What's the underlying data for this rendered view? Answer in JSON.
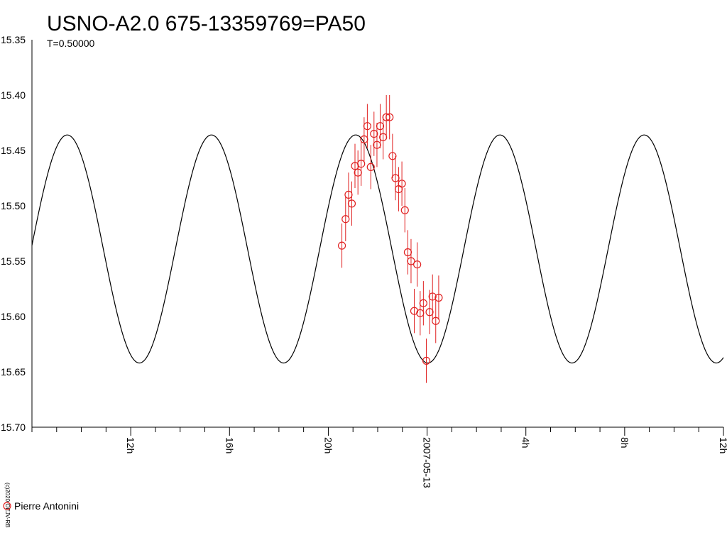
{
  "chart_data": {
    "type": "scatter",
    "title": "USNO-A2.0 675-13359769=PA50",
    "subtitle": "T=0.50000",
    "copyright": "(c)2020 OEJV-RB",
    "y_reversed": true,
    "ylim": [
      15.35,
      15.7
    ],
    "y_ticks": [
      "15.35",
      "15.40",
      "15.45",
      "15.50",
      "15.55",
      "15.60",
      "15.65",
      "15.70"
    ],
    "x_unit": "hours",
    "xlim": [
      8.0,
      36.0
    ],
    "x_ticks": [
      {
        "x": 12,
        "label": "12h"
      },
      {
        "x": 16,
        "label": "16h"
      },
      {
        "x": 20,
        "label": "20h"
      },
      {
        "x": 24,
        "label": "2007-05-13"
      },
      {
        "x": 28,
        "label": "4h"
      },
      {
        "x": 32,
        "label": "8h"
      },
      {
        "x": 36,
        "label": "12h"
      }
    ],
    "minor_tick_step_hours": 1,
    "model": {
      "type": "sinusoid",
      "period_hours": 5.84,
      "max_mag": 15.436,
      "min_mag": 15.642,
      "brightest_at_hours": 9.43
    },
    "colors": {
      "series": "#e02020",
      "model": "#000000",
      "axis": "#000000"
    },
    "series": [
      {
        "name": "Pierre Antonini",
        "marker": "circle-open",
        "points": [
          {
            "x": 20.55,
            "y": 15.536,
            "err": 0.02
          },
          {
            "x": 20.7,
            "y": 15.512,
            "err": 0.02
          },
          {
            "x": 20.82,
            "y": 15.49,
            "err": 0.02
          },
          {
            "x": 20.95,
            "y": 15.498,
            "err": 0.02
          },
          {
            "x": 21.08,
            "y": 15.464,
            "err": 0.02
          },
          {
            "x": 21.2,
            "y": 15.47,
            "err": 0.02
          },
          {
            "x": 21.33,
            "y": 15.462,
            "err": 0.02
          },
          {
            "x": 21.45,
            "y": 15.44,
            "err": 0.02
          },
          {
            "x": 21.58,
            "y": 15.428,
            "err": 0.02
          },
          {
            "x": 21.72,
            "y": 15.465,
            "err": 0.02
          },
          {
            "x": 21.85,
            "y": 15.435,
            "err": 0.02
          },
          {
            "x": 21.97,
            "y": 15.445,
            "err": 0.02
          },
          {
            "x": 22.1,
            "y": 15.428,
            "err": 0.02
          },
          {
            "x": 22.22,
            "y": 15.438,
            "err": 0.02
          },
          {
            "x": 22.35,
            "y": 15.42,
            "err": 0.02
          },
          {
            "x": 22.48,
            "y": 15.42,
            "err": 0.02
          },
          {
            "x": 22.6,
            "y": 15.455,
            "err": 0.02
          },
          {
            "x": 22.72,
            "y": 15.475,
            "err": 0.02
          },
          {
            "x": 22.85,
            "y": 15.485,
            "err": 0.02
          },
          {
            "x": 22.98,
            "y": 15.48,
            "err": 0.02
          },
          {
            "x": 23.1,
            "y": 15.504,
            "err": 0.02
          },
          {
            "x": 23.22,
            "y": 15.542,
            "err": 0.02
          },
          {
            "x": 23.35,
            "y": 15.55,
            "err": 0.02
          },
          {
            "x": 23.48,
            "y": 15.595,
            "err": 0.02
          },
          {
            "x": 23.6,
            "y": 15.553,
            "err": 0.02
          },
          {
            "x": 23.72,
            "y": 15.597,
            "err": 0.02
          },
          {
            "x": 23.85,
            "y": 15.588,
            "err": 0.02
          },
          {
            "x": 23.97,
            "y": 15.64,
            "err": 0.02
          },
          {
            "x": 24.1,
            "y": 15.596,
            "err": 0.02
          },
          {
            "x": 24.22,
            "y": 15.582,
            "err": 0.02
          },
          {
            "x": 24.35,
            "y": 15.604,
            "err": 0.02
          },
          {
            "x": 24.47,
            "y": 15.583,
            "err": 0.02
          }
        ]
      }
    ],
    "legend_placement": "bottom-left"
  }
}
